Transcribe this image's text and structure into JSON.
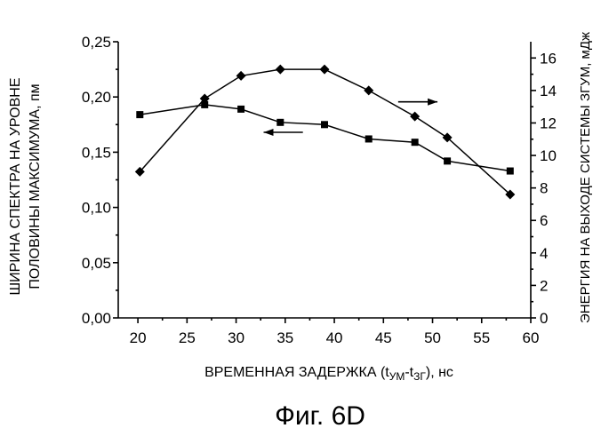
{
  "chart_data": {
    "type": "line",
    "caption": "Фиг. 6D",
    "xlabel_prefix": "ВРЕМЕННАЯ ЗАДЕРЖКА (t",
    "xlabel_sub1": "УМ",
    "xlabel_mid": "-t",
    "xlabel_sub2": "ЗГ",
    "xlabel_suffix": "), нс",
    "ylabel_left_line1": "ШИРИНА СПЕКТРА НА УРОВНЕ",
    "ylabel_left_line2": "ПОЛОВИНЫ МАКСИМУМА, пм",
    "ylabel_right": "ЭНЕРГИЯ НА ВЫХОДЕ СИСТЕМЫ ЗГУМ, мДж",
    "xlim": [
      18,
      60
    ],
    "ylim_left": [
      0,
      0.25
    ],
    "ylim_right": [
      0,
      17
    ],
    "x_ticks": [
      "20",
      "25",
      "30",
      "35",
      "40",
      "45",
      "50",
      "55",
      "60"
    ],
    "y_left_ticks": [
      "0,00",
      "0,05",
      "0,10",
      "0,15",
      "0,20",
      "0,25"
    ],
    "y_right_ticks": [
      "0",
      "2",
      "4",
      "6",
      "8",
      "10",
      "12",
      "14",
      "16"
    ],
    "series": [
      {
        "axis": "left",
        "marker": "square",
        "x": [
          20.2,
          26.8,
          30.5,
          34.5,
          39.0,
          43.5,
          48.2,
          51.5,
          57.9
        ],
        "y": [
          0.184,
          0.193,
          0.189,
          0.177,
          0.175,
          0.162,
          0.159,
          0.142,
          0.133
        ]
      },
      {
        "axis": "right",
        "marker": "diamond",
        "x": [
          20.2,
          26.8,
          30.5,
          34.5,
          39.0,
          43.5,
          48.2,
          51.5,
          57.9
        ],
        "y": [
          9.0,
          13.5,
          14.9,
          15.3,
          15.3,
          14.0,
          12.4,
          11.1,
          7.6
        ]
      }
    ],
    "arrows": [
      {
        "direction": "left",
        "x": [
          32.8,
          36.8
        ],
        "y_left": 0.168
      },
      {
        "direction": "right",
        "x": [
          46.5,
          50.5
        ],
        "y_right": 13.3
      }
    ],
    "grid": false
  }
}
